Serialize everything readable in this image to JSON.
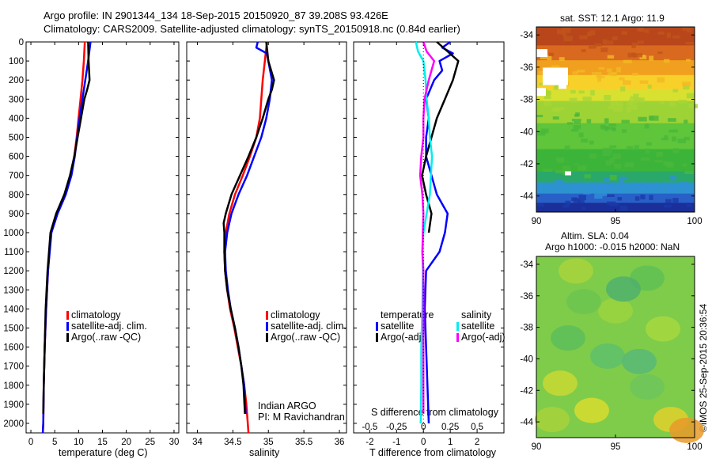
{
  "header": {
    "line1": "Argo profile: IN 2901344_134 18-Sep-2015 20150920_87 39.208S 93.426E",
    "line2": "Climatology: CARS2009. Satellite-adjusted climatology: synTS_20150918.nc (0.84d earlier)"
  },
  "colors": {
    "climatology": "#ff0000",
    "satellite": "#0000ff",
    "argo": "#000000",
    "sat_salinity": "#00eeee",
    "argo_salinity": "#ff00ff"
  },
  "chart_data": [
    {
      "type": "line",
      "xlabel": "temperature (deg C)",
      "xlim": [
        -1,
        31
      ],
      "ylim": [
        0,
        2050
      ],
      "y_inverted": true,
      "xticks": [
        "0",
        "5",
        "10",
        "15",
        "20",
        "25",
        "30"
      ],
      "yticks": [
        "0",
        "100",
        "200",
        "300",
        "400",
        "500",
        "600",
        "700",
        "800",
        "900",
        "1000",
        "1100",
        "1200",
        "1300",
        "1400",
        "1500",
        "1600",
        "1700",
        "1800",
        "1900",
        "2000"
      ],
      "legend": [
        "climatology",
        "satellite-adj. clim.",
        "Argo(..raw -QC)"
      ],
      "series": [
        {
          "name": "climatology",
          "color": "#ff0000",
          "depth": [
            0,
            100,
            200,
            300,
            400,
            500,
            600,
            700,
            800,
            900,
            1000,
            1200,
            1400,
            1600,
            1800,
            2000,
            2050
          ],
          "values": [
            11.3,
            11.1,
            10.8,
            10.4,
            10.0,
            9.6,
            9.1,
            8.4,
            7.2,
            5.5,
            4.2,
            3.6,
            3.2,
            2.9,
            2.7,
            2.6,
            2.5
          ]
        },
        {
          "name": "satellite-adj. clim.",
          "color": "#0000ff",
          "depth": [
            0,
            100,
            200,
            300,
            400,
            500,
            600,
            700,
            800,
            900,
            1000,
            1200,
            1400,
            1600,
            1800,
            2000,
            2050
          ],
          "values": [
            12.5,
            12.0,
            11.4,
            10.8,
            10.2,
            9.7,
            9.2,
            8.5,
            7.3,
            5.6,
            4.3,
            3.6,
            3.2,
            2.9,
            2.7,
            2.6,
            2.5
          ]
        },
        {
          "name": "Argo(..raw -QC)",
          "color": "#000000",
          "depth": [
            0,
            100,
            150,
            200,
            250,
            300,
            400,
            500,
            600,
            700,
            800,
            900,
            1000,
            1200,
            1400,
            1600,
            1800,
            1950
          ],
          "values": [
            12.0,
            12.1,
            12.2,
            12.3,
            11.8,
            11.2,
            10.5,
            9.8,
            9.1,
            8.2,
            7.0,
            5.3,
            4.1,
            3.5,
            3.1,
            2.9,
            2.7,
            2.6
          ]
        }
      ]
    },
    {
      "type": "line",
      "xlabel": "salinity",
      "xlim": [
        33.85,
        36.1
      ],
      "ylim": [
        0,
        2050
      ],
      "y_inverted": true,
      "xticks": [
        "34",
        "34.5",
        "35",
        "35.5",
        "36"
      ],
      "legend": [
        "climatology",
        "satellite-adj. clim.",
        "Argo(..raw -QC)"
      ],
      "annotation": [
        "Indian ARGO",
        "PI: M Ravichandran"
      ],
      "series": [
        {
          "name": "climatology",
          "color": "#ff0000",
          "depth": [
            0,
            100,
            200,
            300,
            400,
            500,
            600,
            700,
            800,
            900,
            1000,
            1100,
            1200,
            1300,
            1400,
            1500,
            1600,
            1700,
            1800,
            1900,
            2050
          ],
          "values": [
            34.98,
            34.95,
            34.92,
            34.9,
            34.88,
            34.83,
            34.74,
            34.64,
            34.53,
            34.45,
            34.4,
            34.38,
            34.39,
            34.42,
            34.46,
            34.52,
            34.57,
            34.62,
            34.66,
            34.69,
            34.72
          ]
        },
        {
          "name": "satellite-adj. clim.",
          "color": "#0000ff",
          "depth": [
            0,
            30,
            60,
            100,
            200,
            300,
            400,
            500,
            600,
            700,
            800,
            900,
            1000,
            1100,
            1200,
            1300,
            1400,
            1500,
            1600,
            1700,
            1800,
            1950
          ],
          "values": [
            34.85,
            34.83,
            34.98,
            35.0,
            35.05,
            35.02,
            34.97,
            34.9,
            34.8,
            34.7,
            34.58,
            34.48,
            34.42,
            34.39,
            34.4,
            34.43,
            34.47,
            34.53,
            34.58,
            34.62,
            34.66,
            34.68
          ]
        },
        {
          "name": "Argo(..raw -QC)",
          "color": "#000000",
          "depth": [
            0,
            100,
            200,
            250,
            300,
            400,
            500,
            600,
            700,
            800,
            900,
            950,
            1000,
            1100,
            1200,
            1300,
            1400,
            1500,
            1600,
            1700,
            1800,
            1950
          ],
          "values": [
            34.97,
            35.0,
            35.08,
            35.05,
            35.0,
            34.92,
            34.83,
            34.72,
            34.6,
            34.48,
            34.4,
            34.37,
            34.38,
            34.38,
            34.39,
            34.42,
            34.47,
            34.53,
            34.58,
            34.62,
            34.65,
            34.67
          ]
        }
      ]
    },
    {
      "type": "line",
      "xlabel": "T difference from climatology",
      "xlabel_top": "S difference from climatology",
      "xlim": [
        -2.6,
        3.0
      ],
      "ylim": [
        0,
        2050
      ],
      "y_inverted": true,
      "xticks": [
        "-2",
        "-1",
        "0",
        "1",
        "2"
      ],
      "xticks_top": [
        "-0.5",
        "-0.25",
        "0",
        "0.25",
        "0.5"
      ],
      "legend_headers": [
        "temperature",
        "salinity"
      ],
      "legend": [
        "satellite",
        "Argo(-adj)",
        "satellite",
        "Argo(-adj)"
      ],
      "series": [
        {
          "name": "satellite",
          "color": "#0000ff",
          "depth": [
            0,
            30,
            60,
            100,
            150,
            200,
            300,
            400,
            500,
            600,
            700,
            800,
            900,
            1000,
            1100,
            1200,
            1400,
            1600,
            1800,
            2000
          ],
          "values": [
            1.0,
            0.7,
            1.1,
            0.6,
            0.7,
            0.4,
            0.1,
            0.2,
            0.1,
            0.1,
            0.3,
            0.5,
            0.9,
            0.8,
            0.6,
            0.1,
            0.05,
            0.1,
            0.15,
            0.2
          ]
        },
        {
          "name": "Argo(-adj)",
          "color": "#000000",
          "depth": [
            0,
            50,
            100,
            200,
            300,
            400,
            500,
            600,
            700,
            800,
            900,
            1000
          ],
          "values": [
            0.5,
            0.9,
            1.3,
            1.1,
            0.8,
            0.5,
            0.3,
            0.1,
            -0.05,
            0.1,
            0.3,
            0.2
          ]
        },
        {
          "name": "satellite",
          "color": "#00eeee",
          "depth": [
            0,
            50,
            100,
            200,
            300,
            400,
            500,
            600,
            700,
            800,
            900,
            1000,
            1100,
            1200,
            1400,
            1600,
            1800,
            2000
          ],
          "values": [
            -0.07,
            -0.05,
            0.0,
            0.02,
            0.03,
            0.05,
            0.06,
            0.08,
            0.07,
            0.06,
            0.03,
            0.0,
            -0.01,
            -0.005,
            -0.01,
            -0.02,
            -0.02,
            -0.025
          ]
        },
        {
          "name": "Argo(-adj)",
          "color": "#ff00ff",
          "depth": [
            0,
            50,
            100,
            200,
            300,
            400,
            500,
            600,
            700,
            800,
            900,
            1000,
            1100,
            1200,
            1400,
            1600,
            1800,
            1950
          ],
          "values": [
            0.0,
            0.03,
            0.1,
            0.05,
            0.01,
            0.0,
            0.0,
            -0.02,
            -0.03,
            -0.01,
            0.0,
            -0.005,
            -0.01,
            0.0,
            0.0,
            0.0,
            0.0,
            0.0
          ]
        }
      ]
    },
    {
      "type": "heatmap",
      "title": "sat. SST: 12.1  Argo: 11.9",
      "xlim": [
        90,
        100
      ],
      "ylim": [
        -45,
        -33.5
      ],
      "xticks": [
        "90",
        "95",
        "100"
      ],
      "yticks": [
        "-34",
        "-36",
        "-38",
        "-40",
        "-42",
        "-44"
      ]
    },
    {
      "type": "heatmap",
      "title_lines": [
        "Altim. SLA: 0.04",
        "Argo h1000: -0.015  h2000: NaN"
      ],
      "xlim": [
        90,
        100
      ],
      "ylim": [
        -45,
        -33.5
      ],
      "xticks": [
        "90",
        "95",
        "100"
      ],
      "yticks": [
        "-34",
        "-36",
        "-38",
        "-40",
        "-42",
        "-44"
      ]
    }
  ],
  "credit": "©IMOS 25-Sep-2015 20:36:54"
}
